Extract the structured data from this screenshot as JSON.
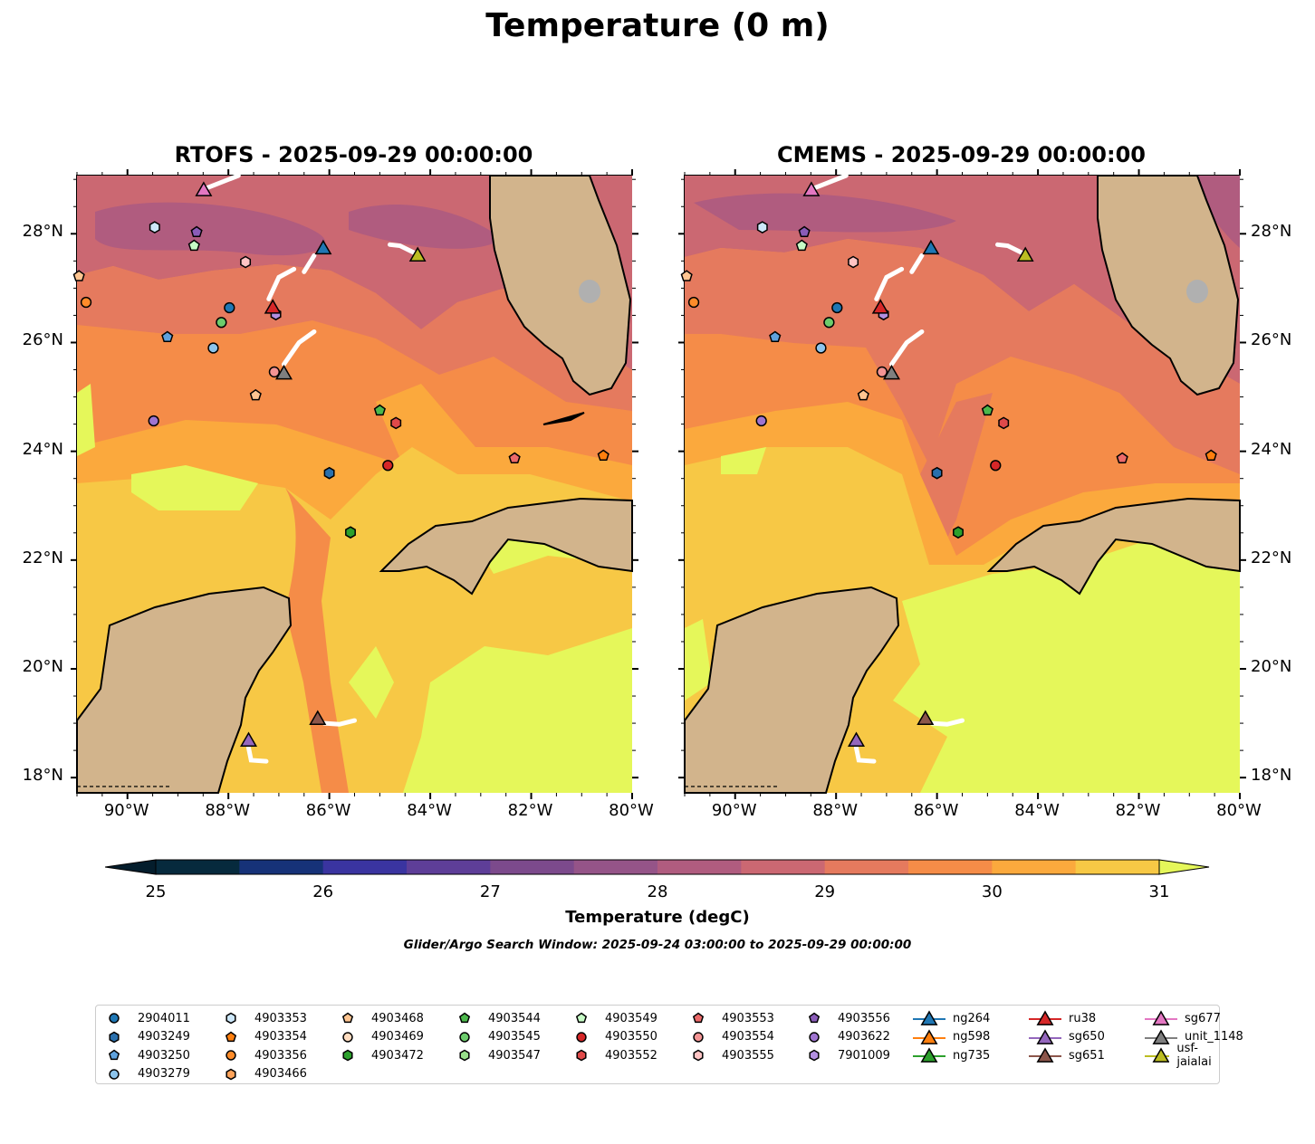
{
  "title": "Temperature (0 m)",
  "panels": [
    {
      "title": "RTOFS - 2025-09-29 00:00:00"
    },
    {
      "title": "CMEMS - 2025-09-29 00:00:00"
    }
  ],
  "axes": {
    "lon_range": [
      -91,
      -80
    ],
    "lat_range": [
      17.72,
      29.07
    ],
    "lon_ticks": [
      -90,
      -88,
      -86,
      -84,
      -82,
      -80
    ],
    "lon_labels": [
      "90°W",
      "88°W",
      "86°W",
      "84°W",
      "82°W",
      "80°W"
    ],
    "lat_ticks": [
      18,
      20,
      22,
      24,
      26,
      28
    ],
    "lat_labels": [
      "18°N",
      "20°N",
      "22°N",
      "24°N",
      "26°N",
      "28°N"
    ]
  },
  "colorbar": {
    "label": "Temperature (degC)",
    "levels": [
      25,
      25.5,
      26,
      26.5,
      27,
      27.5,
      28,
      28.5,
      29,
      29.5,
      30,
      30.5,
      31
    ],
    "colors": [
      "#062a3d",
      "#163278",
      "#3a34a0",
      "#5e3e98",
      "#7c4a8c",
      "#955488",
      "#b05c7f",
      "#cb6872",
      "#e57a5e",
      "#f58c48",
      "#fba93d",
      "#f7c845"
    ],
    "under_color": "#041d2c",
    "over_color": "#e5f75a",
    "tick_labels": [
      "25",
      "26",
      "27",
      "28",
      "29",
      "30",
      "31"
    ]
  },
  "search_window": "Glider/Argo Search Window: 2025-09-24 03:00:00 to 2025-09-29 00:00:00",
  "legend": [
    {
      "label": "2904011",
      "shape": "circle",
      "color": "#1f77b4"
    },
    {
      "label": "4903249",
      "shape": "hexagon",
      "color": "#2a70ad"
    },
    {
      "label": "4903250",
      "shape": "pentagon",
      "color": "#5fa2dd"
    },
    {
      "label": "4903279",
      "shape": "circle",
      "color": "#8cc4ec"
    },
    {
      "label": "4903353",
      "shape": "hexagon",
      "color": "#cde8fb"
    },
    {
      "label": "4903354",
      "shape": "pentagon",
      "color": "#ff7f0e"
    },
    {
      "label": "4903356",
      "shape": "circle",
      "color": "#ff8c2a"
    },
    {
      "label": "4903466",
      "shape": "hexagon",
      "color": "#ffa35a"
    },
    {
      "label": "4903468",
      "shape": "pentagon",
      "color": "#ffc591"
    },
    {
      "label": "4903469",
      "shape": "circle",
      "color": "#ffdcc0"
    },
    {
      "label": "4903472",
      "shape": "hexagon",
      "color": "#2ca02c"
    },
    {
      "label": "4903544",
      "shape": "pentagon",
      "color": "#4cb84c"
    },
    {
      "label": "4903545",
      "shape": "circle",
      "color": "#6ccc6c"
    },
    {
      "label": "4903547",
      "shape": "hexagon",
      "color": "#98df8a"
    },
    {
      "label": "4903549",
      "shape": "pentagon",
      "color": "#c6fbc6"
    },
    {
      "label": "4903550",
      "shape": "circle",
      "color": "#d62728"
    },
    {
      "label": "4903552",
      "shape": "hexagon",
      "color": "#e04a4a"
    },
    {
      "label": "4903553",
      "shape": "pentagon",
      "color": "#ec6a6a"
    },
    {
      "label": "4903554",
      "shape": "circle",
      "color": "#f39494"
    },
    {
      "label": "4903555",
      "shape": "hexagon",
      "color": "#ffc4c4"
    },
    {
      "label": "4903556",
      "shape": "pentagon",
      "color": "#8a5cb8"
    },
    {
      "label": "4903622",
      "shape": "circle",
      "color": "#9f74d0"
    },
    {
      "label": "7901009",
      "shape": "hexagon",
      "color": "#b28fe0"
    },
    {
      "label": "ng264",
      "shape": "triangle",
      "color": "#1f77b4"
    },
    {
      "label": "ng598",
      "shape": "triangle",
      "color": "#ff7f0e"
    },
    {
      "label": "ng735",
      "shape": "triangle",
      "color": "#2ca02c"
    },
    {
      "label": "ru38",
      "shape": "triangle",
      "color": "#d62728"
    },
    {
      "label": "sg650",
      "shape": "triangle",
      "color": "#9467bd"
    },
    {
      "label": "sg651",
      "shape": "triangle",
      "color": "#8c564b"
    },
    {
      "label": "sg677",
      "shape": "triangle",
      "color": "#e377c2"
    },
    {
      "label": "unit_1148",
      "shape": "triangle",
      "color": "#7f7f7f"
    },
    {
      "label": "usf-jaialai",
      "shape": "triangle",
      "color": "#bcbd22"
    }
  ],
  "observations": [
    {
      "id": "sg677",
      "lon": -88.49,
      "lat": 28.82
    },
    {
      "id": "4903353",
      "lon": -89.46,
      "lat": 28.12
    },
    {
      "id": "4903556",
      "lon": -88.63,
      "lat": 28.03
    },
    {
      "id": "4903549",
      "lon": -88.68,
      "lat": 27.78
    },
    {
      "id": "4903555",
      "lon": -87.66,
      "lat": 27.48
    },
    {
      "id": "ng264",
      "lon": -86.12,
      "lat": 27.75
    },
    {
      "id": "usf-jaialai",
      "lon": -84.25,
      "lat": 27.62
    },
    {
      "id": "4903468",
      "lon": -90.96,
      "lat": 27.22
    },
    {
      "id": "4903356",
      "lon": -90.82,
      "lat": 26.74
    },
    {
      "id": "2904011",
      "lon": -87.98,
      "lat": 26.64
    },
    {
      "id": "7901009",
      "lon": -87.06,
      "lat": 26.52
    },
    {
      "id": "ru38",
      "lon": -87.12,
      "lat": 26.66
    },
    {
      "id": "4903545",
      "lon": -88.14,
      "lat": 26.37
    },
    {
      "id": "4903250",
      "lon": -89.21,
      "lat": 26.1
    },
    {
      "id": "4903279",
      "lon": -88.3,
      "lat": 25.9
    },
    {
      "id": "4903554",
      "lon": -87.09,
      "lat": 25.46
    },
    {
      "id": "unit_1148",
      "lon": -86.9,
      "lat": 25.45
    },
    {
      "id": "4903468",
      "lon": -87.46,
      "lat": 25.03
    },
    {
      "id": "4903622",
      "lon": -89.48,
      "lat": 24.56
    },
    {
      "id": "4903544",
      "lon": -85.0,
      "lat": 24.75
    },
    {
      "id": "4903552",
      "lon": -84.68,
      "lat": 24.52
    },
    {
      "id": "4903550",
      "lon": -84.84,
      "lat": 23.74
    },
    {
      "id": "4903553",
      "lon": -82.33,
      "lat": 23.87
    },
    {
      "id": "4903354",
      "lon": -80.57,
      "lat": 23.92
    },
    {
      "id": "4903249",
      "lon": -86.0,
      "lat": 23.6
    },
    {
      "id": "4903472",
      "lon": -85.58,
      "lat": 22.51
    },
    {
      "id": "sg651",
      "lon": -86.23,
      "lat": 19.1
    },
    {
      "id": "sg650",
      "lon": -87.6,
      "lat": 18.7
    }
  ],
  "tracks": [
    {
      "id": "sg677",
      "points": [
        [
          -88.49,
          28.82
        ],
        [
          -87.8,
          29.07
        ]
      ]
    },
    {
      "id": "ng264",
      "points": [
        [
          -86.3,
          27.6
        ],
        [
          -86.5,
          27.3
        ]
      ]
    },
    {
      "id": "ng264",
      "points": [
        [
          -86.7,
          27.35
        ],
        [
          -87.0,
          27.2
        ],
        [
          -87.2,
          26.8
        ]
      ]
    },
    {
      "id": "unit_1148",
      "points": [
        [
          -86.9,
          25.6
        ],
        [
          -86.6,
          26.0
        ],
        [
          -86.3,
          26.2
        ]
      ]
    },
    {
      "id": "usf-jaialai",
      "points": [
        [
          -84.25,
          27.62
        ],
        [
          -84.6,
          27.78
        ],
        [
          -84.8,
          27.8
        ]
      ]
    },
    {
      "id": "sg651",
      "points": [
        [
          -86.1,
          19.0
        ],
        [
          -85.8,
          18.98
        ],
        [
          -85.5,
          19.05
        ]
      ]
    },
    {
      "id": "sg650",
      "points": [
        [
          -87.6,
          18.55
        ],
        [
          -87.55,
          18.32
        ],
        [
          -87.25,
          18.3
        ]
      ]
    }
  ]
}
